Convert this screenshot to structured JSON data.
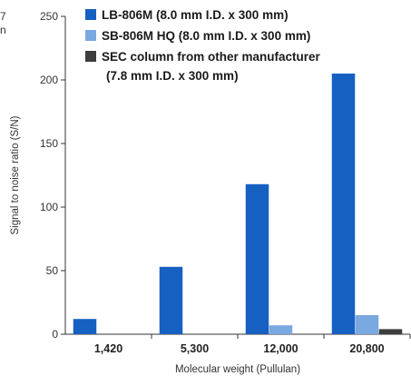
{
  "chart_data": {
    "type": "bar",
    "categories": [
      "1,420",
      "5,300",
      "12,000",
      "20,800"
    ],
    "series": [
      {
        "name": "LB-806M  (8.0 mm I.D. x 300 mm)",
        "color": "#1660c2",
        "values": [
          12,
          53,
          118,
          205
        ]
      },
      {
        "name": "SB-806M HQ  (8.0 mm I.D. x 300 mm)",
        "color": "#7aa8e0",
        "values": [
          0,
          0,
          7,
          15
        ]
      },
      {
        "name": "SEC column from other manufacturer",
        "color": "#3d3d3d",
        "values": [
          0,
          0,
          0,
          4
        ]
      }
    ],
    "legend_extra_line": "(7.8 mm I.D. x 300 mm)",
    "xlabel": "Molecular weight (Pullulan)",
    "ylabel": "Signal to noise ratio (S/N)",
    "ylim": [
      0,
      250
    ],
    "yticks": [
      0,
      50,
      100,
      150,
      200,
      250
    ],
    "grid": false,
    "legend_position": "top-right",
    "edge_text": [
      "7",
      "n"
    ]
  }
}
